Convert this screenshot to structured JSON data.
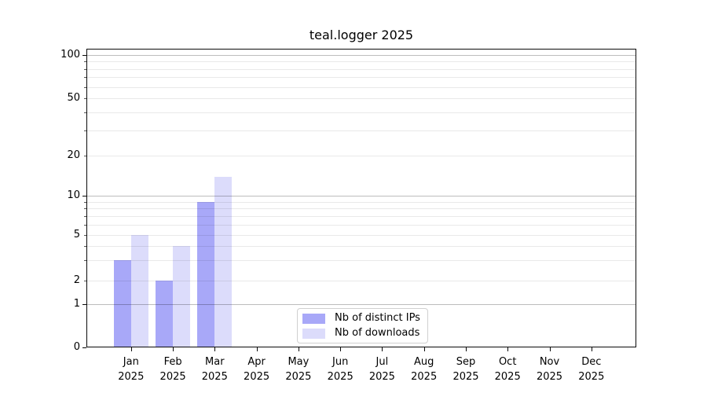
{
  "chart_data": {
    "type": "bar",
    "title": "teal.logger 2025",
    "package": "teal.logger",
    "year_label": "2025",
    "categories": [
      "Jan",
      "Feb",
      "Mar",
      "Apr",
      "May",
      "Jun",
      "Jul",
      "Aug",
      "Sep",
      "Oct",
      "Nov",
      "Dec"
    ],
    "series": [
      {
        "name": "Nb of distinct IPs",
        "color": "#a8a8f8",
        "values": [
          3,
          2,
          9,
          0,
          0,
          0,
          0,
          0,
          0,
          0,
          0,
          0
        ]
      },
      {
        "name": "Nb of downloads",
        "color": "#dcdcfb",
        "values": [
          5,
          4,
          14,
          0,
          0,
          0,
          0,
          0,
          0,
          0,
          0,
          0
        ]
      }
    ],
    "xlabel": "",
    "ylabel": "",
    "y_axis": {
      "scale": "log-like with zero baseline",
      "labeled_ticks": [
        0,
        1,
        2,
        5,
        10,
        20,
        50,
        100
      ],
      "decade_major_gridlines": [
        1,
        10,
        100
      ],
      "minor_gridlines": [
        2,
        3,
        4,
        5,
        6,
        7,
        8,
        9,
        20,
        30,
        40,
        50,
        60,
        70,
        80,
        90
      ],
      "ylim": [
        0,
        115
      ]
    },
    "grid": "horizontal major + minor, drawn over bars",
    "legend": {
      "position": "inside plot, lower center",
      "items": [
        "Nb of distinct IPs",
        "Nb of downloads"
      ]
    },
    "colors": {
      "distinct_ips": "#a8a8f8",
      "downloads": "#dcdcfb",
      "grid_major": "#bdbdbd",
      "grid_minor": "#e8e8e8",
      "axis": "#0a0a0a",
      "background": "#ffffff"
    }
  }
}
